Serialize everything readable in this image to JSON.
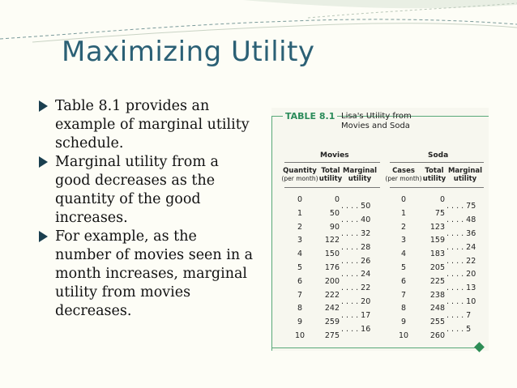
{
  "slide": {
    "title": "Maximizing Utility",
    "bullets": [
      "Table 8.1 provides an example of marginal utility schedule.",
      "Marginal utility from a good decreases as the quantity of the good increases.",
      "For example, as the number of movies seen in a month increases, marginal utility from movies decreases."
    ]
  },
  "table": {
    "label": "TABLE 8.1",
    "title": "Lisa's Utility from Movies and Soda",
    "groups": [
      "Movies",
      "Soda"
    ],
    "headers": {
      "movies": [
        {
          "bold": "Quantity",
          "unit": "(per month)"
        },
        {
          "bold": "Total",
          "unit": "utility"
        },
        {
          "bold": "Marginal",
          "unit": "utility"
        }
      ],
      "soda": [
        {
          "bold": "Cases",
          "unit": "(per month)"
        },
        {
          "bold": "Total",
          "unit": "utility"
        },
        {
          "bold": "Marginal",
          "unit": "utility"
        }
      ]
    },
    "movies": {
      "quantity": [
        "0",
        "1",
        "2",
        "3",
        "4",
        "5",
        "6",
        "7",
        "8",
        "9",
        "10"
      ],
      "total": [
        "0",
        "50",
        "90",
        "122",
        "150",
        "176",
        "200",
        "222",
        "242",
        "259",
        "275"
      ],
      "marginal": [
        ". . . . 50",
        ". . . . 40",
        ". . . . 32",
        ". . . . 28",
        ". . . . 26",
        ". . . . 24",
        ". . . . 22",
        ". . . . 20",
        ". . . . 17",
        ". . . . 16"
      ]
    },
    "soda": {
      "cases": [
        "0",
        "1",
        "2",
        "3",
        "4",
        "5",
        "6",
        "7",
        "8",
        "9",
        "10"
      ],
      "total": [
        "0",
        "75",
        "123",
        "159",
        "183",
        "205",
        "225",
        "238",
        "248",
        "255",
        "260"
      ],
      "marginal": [
        ". . . . 75",
        ". . . . 48",
        ". . . . 36",
        ". . . . 24",
        ". . . . 22",
        ". . . . 20",
        ". . . . 13",
        ". . . . 10",
        ". . . . 7",
        ". . . . 5"
      ]
    }
  },
  "colors": {
    "title": "#2b6075",
    "table_accent": "#2b8b5a",
    "bullet": "#1a3f4f"
  }
}
